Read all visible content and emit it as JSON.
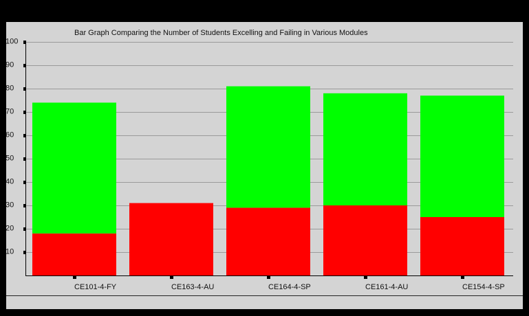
{
  "chart_data": {
    "type": "bar",
    "stacked": true,
    "title": "Bar Graph Comparing the Number of Students Excelling and Failing in Various Modules",
    "xlabel": "",
    "ylabel": "",
    "ylim": [
      0,
      100
    ],
    "yticks": [
      10,
      20,
      30,
      40,
      50,
      60,
      70,
      80,
      90,
      100
    ],
    "grid": true,
    "categories": [
      "CE101-4-FY",
      "CE163-4-AU",
      "CE164-4-SP",
      "CE161-4-AU",
      "CE154-4-SP"
    ],
    "series": [
      {
        "color": "#ff0000",
        "values": [
          18,
          31,
          29,
          30,
          25
        ]
      },
      {
        "color": "#00ff00",
        "values": [
          56,
          0,
          52,
          48,
          52
        ]
      }
    ]
  },
  "colors": {
    "background": "#000000",
    "panel": "#d4d4d4",
    "grid": "#9a9a9a",
    "axis": "#000000"
  }
}
